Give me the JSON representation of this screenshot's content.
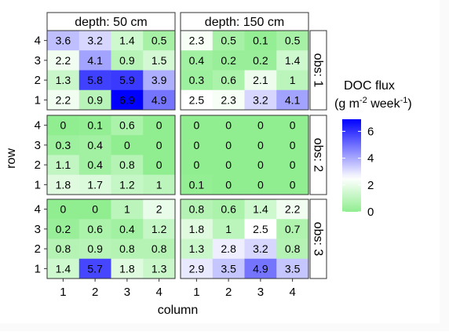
{
  "chart_data": {
    "type": "heatmap",
    "xlabel": "column",
    "ylabel": "row",
    "x_ticks": [
      1,
      2,
      3,
      4
    ],
    "y_ticks": [
      1,
      2,
      3,
      4
    ],
    "facet_columns": [
      "depth: 50 cm",
      "depth: 150 cm"
    ],
    "facet_rows": [
      "obs: 1",
      "obs: 2",
      "obs: 3"
    ],
    "legend": {
      "title_line1": "DOC flux",
      "title_line2_base": "(g m",
      "title_line2_sup1": "-2",
      "title_line2_mid": " week",
      "title_line2_sup2": "-1",
      "title_line2_end": ")",
      "ticks": [
        0,
        2,
        4,
        6
      ],
      "range": [
        0,
        6.9
      ],
      "colors": {
        "low": "#90ee90",
        "mid": "#ffffff",
        "high": "#0000ff"
      },
      "midpoint": 2.5,
      "placement": "right"
    },
    "panels": [
      {
        "row": "obs: 1",
        "column": "depth: 50 cm",
        "values": [
          [
            "3.6",
            "3.2",
            "1.4",
            "0.5"
          ],
          [
            "2.2",
            "4.1",
            "0.9",
            "1.5"
          ],
          [
            "1.3",
            "5.8",
            "5.9",
            "3.9"
          ],
          [
            "2.2",
            "0.9",
            "6.9",
            "4.9"
          ]
        ]
      },
      {
        "row": "obs: 1",
        "column": "depth: 150 cm",
        "values": [
          [
            "2.3",
            "0.5",
            "0.1",
            "0.5"
          ],
          [
            "0.4",
            "0.2",
            "0.2",
            "1.4"
          ],
          [
            "0.3",
            "0.6",
            "2.1",
            "1"
          ],
          [
            "2.5",
            "2.3",
            "3.2",
            "4.1"
          ]
        ]
      },
      {
        "row": "obs: 2",
        "column": "depth: 50 cm",
        "values": [
          [
            "0",
            "0.1",
            "0.6",
            "0"
          ],
          [
            "0.3",
            "0.4",
            "0",
            "0"
          ],
          [
            "1.1",
            "0.4",
            "0.8",
            "0"
          ],
          [
            "1.8",
            "1.7",
            "1.2",
            "1"
          ]
        ]
      },
      {
        "row": "obs: 2",
        "column": "depth: 150 cm",
        "values": [
          [
            "0",
            "0",
            "0",
            "0"
          ],
          [
            "0",
            "0",
            "0",
            "0"
          ],
          [
            "0",
            "0",
            "0",
            "0"
          ],
          [
            "0.1",
            "0",
            "0",
            "0"
          ]
        ]
      },
      {
        "row": "obs: 3",
        "column": "depth: 50 cm",
        "values": [
          [
            "0",
            "0",
            "1",
            "2"
          ],
          [
            "0.2",
            "0.6",
            "0.4",
            "1.2"
          ],
          [
            "0.8",
            "0.9",
            "0.8",
            "0.8"
          ],
          [
            "1.4",
            "5.7",
            "1.8",
            "1.3"
          ]
        ]
      },
      {
        "row": "obs: 3",
        "column": "depth: 150 cm",
        "values": [
          [
            "0.8",
            "0.6",
            "1.4",
            "2.2"
          ],
          [
            "1.8",
            "1",
            "2.5",
            "0.7"
          ],
          [
            "1.3",
            "2.8",
            "3.2",
            "0.8"
          ],
          [
            "2.9",
            "3.5",
            "4.9",
            "3.5"
          ]
        ]
      }
    ]
  }
}
